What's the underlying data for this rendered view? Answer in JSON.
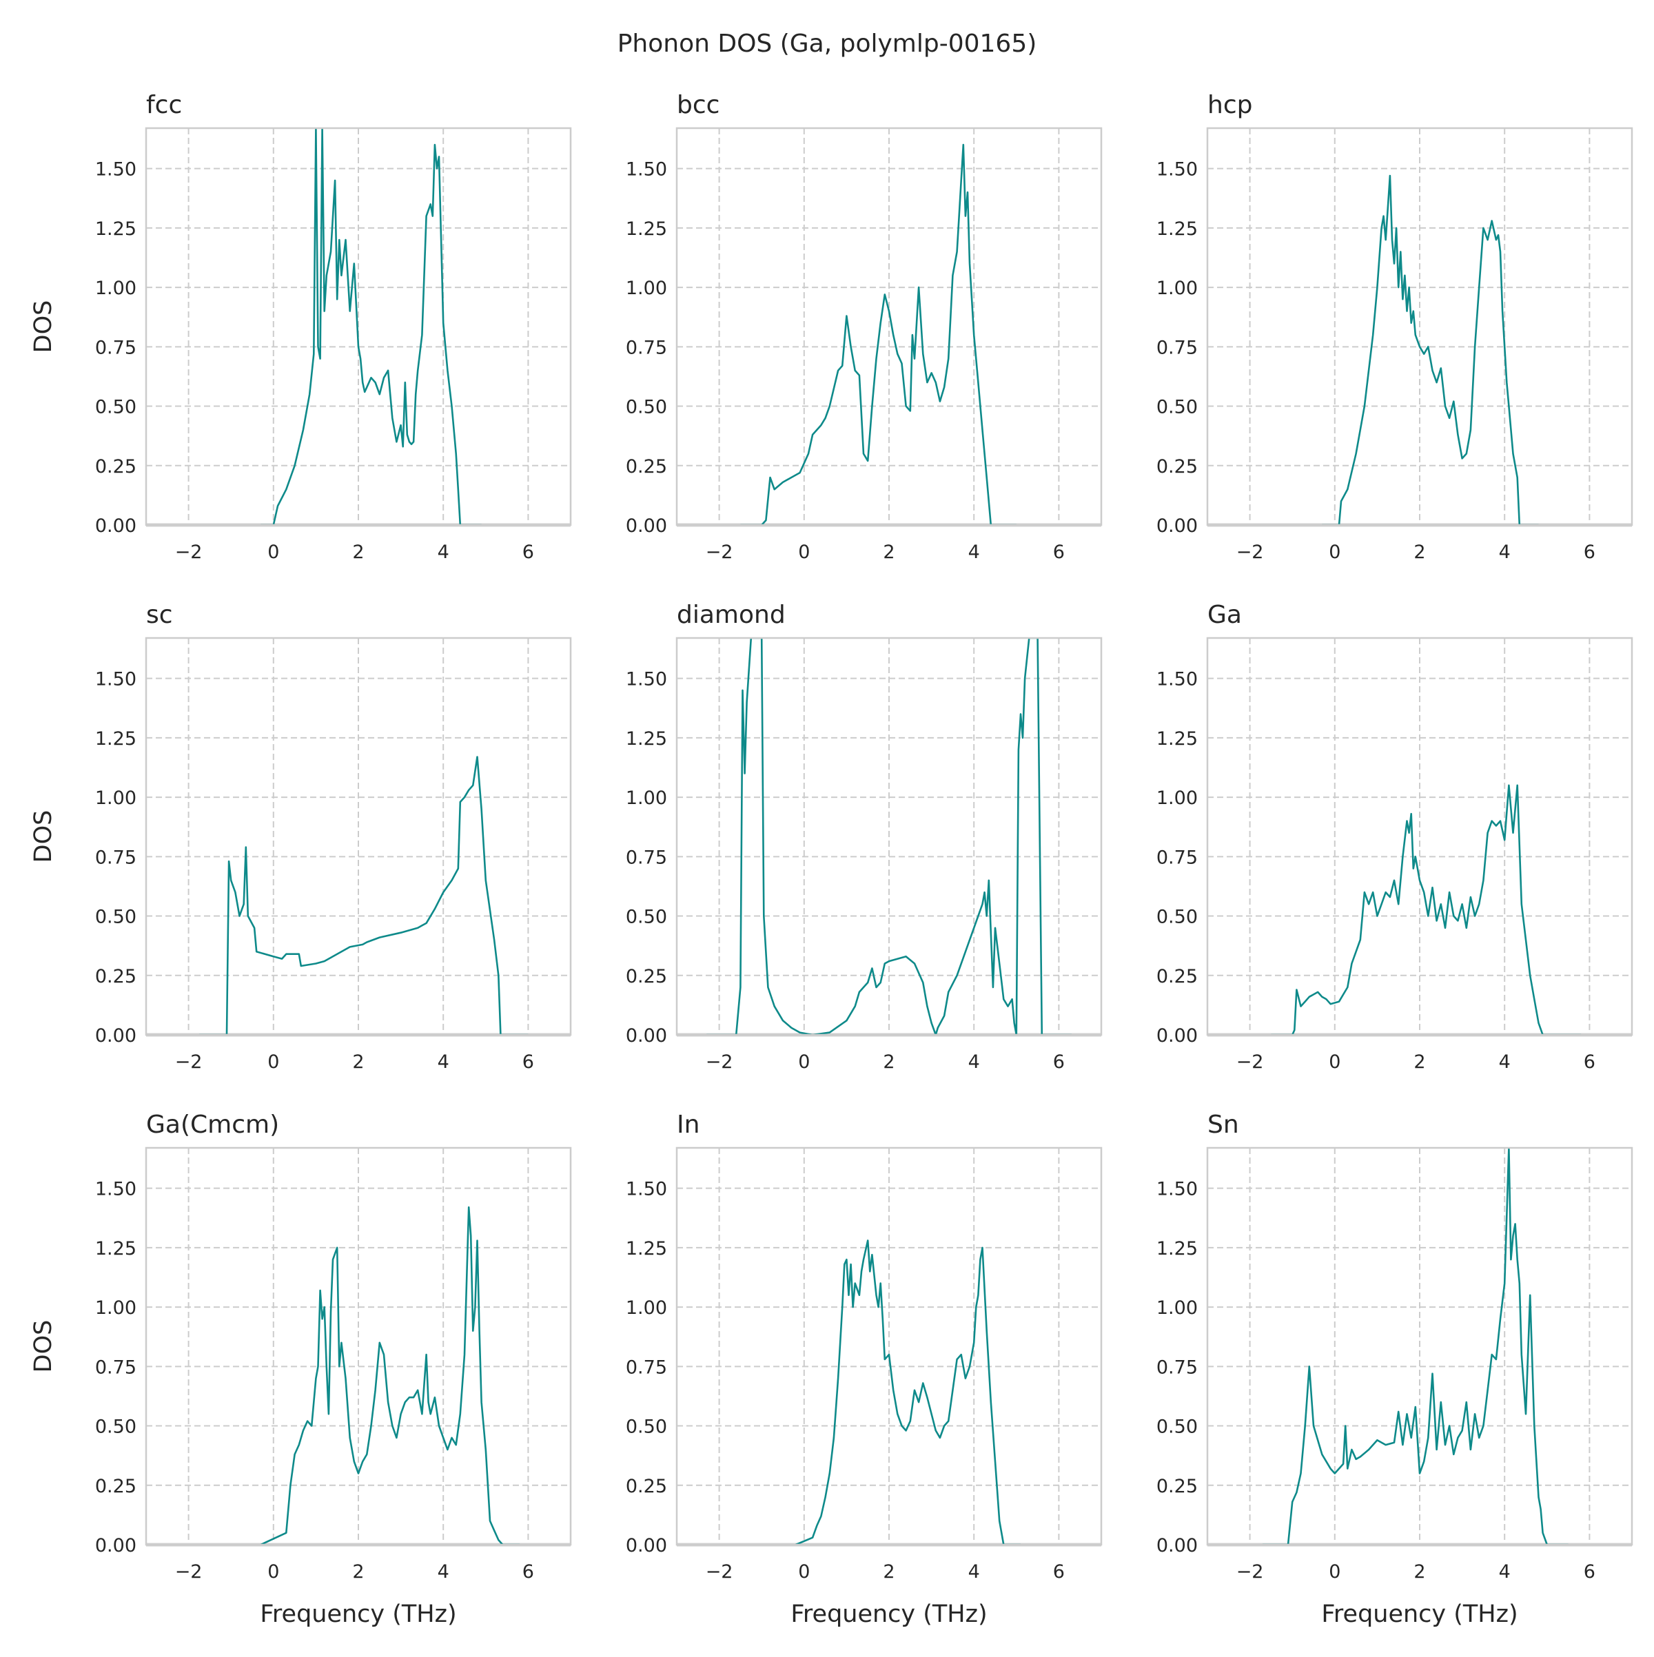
{
  "figure": {
    "title": "Phonon DOS (Ga, polymlp-00165)"
  },
  "colors": {
    "line": "#0e8a8a",
    "grid": "#cccccc",
    "frame": "#cccccc",
    "text": "#262626"
  },
  "chart_data": [
    {
      "type": "line",
      "title": "fcc",
      "xlabel": "",
      "ylabel": "DOS",
      "xlim": [
        -3,
        7
      ],
      "ylim": [
        0,
        1.67
      ],
      "xticks": [
        "−2",
        "0",
        "2",
        "4",
        "6"
      ],
      "yticks": [
        "0.00",
        "0.25",
        "0.50",
        "0.75",
        "1.00",
        "1.25",
        "1.50"
      ],
      "x": [
        -0.3,
        0.0,
        0.1,
        0.3,
        0.5,
        0.7,
        0.85,
        0.95,
        1.0,
        1.05,
        1.1,
        1.15,
        1.2,
        1.25,
        1.3,
        1.35,
        1.45,
        1.5,
        1.55,
        1.6,
        1.7,
        1.8,
        1.9,
        2.0,
        2.05,
        2.1,
        2.15,
        2.2,
        2.3,
        2.4,
        2.5,
        2.6,
        2.7,
        2.8,
        2.9,
        3.0,
        3.05,
        3.1,
        3.15,
        3.2,
        3.25,
        3.3,
        3.35,
        3.4,
        3.5,
        3.6,
        3.7,
        3.75,
        3.8,
        3.85,
        3.9,
        3.95,
        4.0,
        4.05,
        4.1,
        4.2,
        4.3,
        4.35,
        4.4,
        4.5,
        4.6,
        4.9
      ],
      "y": [
        0.0,
        0.0,
        0.08,
        0.15,
        0.25,
        0.4,
        0.55,
        0.72,
        1.67,
        0.75,
        0.7,
        1.67,
        0.9,
        1.05,
        1.1,
        1.15,
        1.45,
        0.95,
        1.2,
        1.05,
        1.2,
        0.9,
        1.1,
        0.75,
        0.7,
        0.6,
        0.56,
        0.58,
        0.62,
        0.6,
        0.55,
        0.62,
        0.65,
        0.45,
        0.35,
        0.42,
        0.33,
        0.6,
        0.38,
        0.35,
        0.34,
        0.35,
        0.55,
        0.65,
        0.8,
        1.3,
        1.35,
        1.3,
        1.6,
        1.5,
        1.55,
        1.2,
        0.85,
        0.75,
        0.65,
        0.5,
        0.3,
        0.15,
        0.0,
        0.0,
        0.0,
        0.0
      ]
    },
    {
      "type": "line",
      "title": "bcc",
      "xlabel": "",
      "ylabel": "",
      "xlim": [
        -3,
        7
      ],
      "ylim": [
        0,
        1.67
      ],
      "xticks": [
        "−2",
        "0",
        "2",
        "4",
        "6"
      ],
      "yticks": [
        "0.00",
        "0.25",
        "0.50",
        "0.75",
        "1.00",
        "1.25",
        "1.50"
      ],
      "x": [
        -1.5,
        -1.0,
        -0.9,
        -0.8,
        -0.7,
        -0.5,
        -0.3,
        -0.1,
        0.1,
        0.2,
        0.4,
        0.5,
        0.6,
        0.8,
        0.9,
        1.0,
        1.1,
        1.2,
        1.3,
        1.4,
        1.5,
        1.6,
        1.7,
        1.8,
        1.9,
        2.0,
        2.1,
        2.2,
        2.3,
        2.4,
        2.5,
        2.55,
        2.6,
        2.7,
        2.8,
        2.9,
        3.0,
        3.1,
        3.2,
        3.3,
        3.4,
        3.5,
        3.6,
        3.7,
        3.75,
        3.8,
        3.85,
        3.9,
        4.0,
        4.1,
        4.2,
        4.3,
        4.4,
        4.5,
        5.0
      ],
      "y": [
        0.0,
        0.0,
        0.02,
        0.2,
        0.15,
        0.18,
        0.2,
        0.22,
        0.3,
        0.38,
        0.42,
        0.45,
        0.5,
        0.65,
        0.67,
        0.88,
        0.75,
        0.65,
        0.63,
        0.3,
        0.27,
        0.5,
        0.7,
        0.85,
        0.97,
        0.9,
        0.8,
        0.72,
        0.68,
        0.5,
        0.48,
        0.8,
        0.7,
        1.0,
        0.72,
        0.6,
        0.64,
        0.6,
        0.52,
        0.58,
        0.7,
        1.05,
        1.15,
        1.45,
        1.6,
        1.3,
        1.4,
        1.1,
        0.8,
        0.6,
        0.4,
        0.2,
        0.0,
        0.0,
        0.0
      ]
    },
    {
      "type": "line",
      "title": "hcp",
      "xlabel": "",
      "ylabel": "",
      "xlim": [
        -3,
        7
      ],
      "ylim": [
        0,
        1.67
      ],
      "xticks": [
        "−2",
        "0",
        "2",
        "4",
        "6"
      ],
      "yticks": [
        "0.00",
        "0.25",
        "0.50",
        "0.75",
        "1.00",
        "1.25",
        "1.50"
      ],
      "x": [
        -0.3,
        0.1,
        0.15,
        0.3,
        0.5,
        0.7,
        0.9,
        1.0,
        1.1,
        1.15,
        1.2,
        1.3,
        1.35,
        1.4,
        1.45,
        1.5,
        1.55,
        1.6,
        1.65,
        1.7,
        1.75,
        1.8,
        1.85,
        1.9,
        2.0,
        2.1,
        2.2,
        2.3,
        2.4,
        2.5,
        2.6,
        2.7,
        2.8,
        2.9,
        3.0,
        3.1,
        3.2,
        3.3,
        3.4,
        3.5,
        3.6,
        3.7,
        3.8,
        3.85,
        3.9,
        3.95,
        4.0,
        4.05,
        4.1,
        4.2,
        4.3,
        4.35,
        4.8
      ],
      "y": [
        0.0,
        0.0,
        0.1,
        0.15,
        0.3,
        0.5,
        0.8,
        1.0,
        1.25,
        1.3,
        1.2,
        1.47,
        1.2,
        1.1,
        1.25,
        1.0,
        1.15,
        0.95,
        1.05,
        0.9,
        1.0,
        0.85,
        0.9,
        0.8,
        0.75,
        0.72,
        0.75,
        0.65,
        0.6,
        0.66,
        0.5,
        0.45,
        0.52,
        0.38,
        0.28,
        0.3,
        0.4,
        0.75,
        1.0,
        1.25,
        1.2,
        1.28,
        1.2,
        1.22,
        1.15,
        0.9,
        0.75,
        0.6,
        0.5,
        0.3,
        0.2,
        0.0,
        0.0
      ]
    },
    {
      "type": "line",
      "title": "sc",
      "xlabel": "",
      "ylabel": "DOS",
      "xlim": [
        -3,
        7
      ],
      "ylim": [
        0,
        1.67
      ],
      "xticks": [
        "−2",
        "0",
        "2",
        "4",
        "6"
      ],
      "yticks": [
        "0.00",
        "0.25",
        "0.50",
        "0.75",
        "1.00",
        "1.25",
        "1.50"
      ],
      "x": [
        -1.75,
        -1.1,
        -1.05,
        -1.0,
        -0.9,
        -0.8,
        -0.7,
        -0.65,
        -0.6,
        -0.45,
        -0.4,
        0.0,
        0.2,
        0.3,
        0.6,
        0.65,
        1.0,
        1.2,
        1.5,
        1.8,
        2.1,
        2.2,
        2.5,
        3.0,
        3.4,
        3.5,
        3.6,
        3.8,
        4.0,
        4.2,
        4.35,
        4.4,
        4.5,
        4.6,
        4.7,
        4.8,
        4.9,
        5.0,
        5.2,
        5.3,
        5.35,
        6.0
      ],
      "y": [
        0.0,
        0.0,
        0.73,
        0.65,
        0.6,
        0.5,
        0.55,
        0.79,
        0.5,
        0.45,
        0.35,
        0.33,
        0.32,
        0.34,
        0.34,
        0.29,
        0.3,
        0.31,
        0.34,
        0.37,
        0.38,
        0.39,
        0.41,
        0.43,
        0.45,
        0.46,
        0.47,
        0.53,
        0.6,
        0.65,
        0.7,
        0.98,
        1.0,
        1.03,
        1.05,
        1.17,
        0.95,
        0.65,
        0.4,
        0.25,
        0.0,
        0.0
      ]
    },
    {
      "type": "line",
      "title": "diamond",
      "xlabel": "",
      "ylabel": "",
      "xlim": [
        -3,
        7
      ],
      "ylim": [
        0,
        1.67
      ],
      "xticks": [
        "−2",
        "0",
        "2",
        "4",
        "6"
      ],
      "yticks": [
        "0.00",
        "0.25",
        "0.50",
        "0.75",
        "1.00",
        "1.25",
        "1.50"
      ],
      "x": [
        -2.3,
        -1.6,
        -1.5,
        -1.45,
        -1.4,
        -1.35,
        -1.25,
        -1.2,
        -1.15,
        -1.0,
        -0.95,
        -0.85,
        -0.7,
        -0.5,
        -0.3,
        -0.1,
        0.2,
        0.6,
        1.0,
        1.2,
        1.3,
        1.4,
        1.5,
        1.6,
        1.7,
        1.8,
        1.9,
        2.0,
        2.4,
        2.6,
        2.8,
        2.9,
        3.0,
        3.1,
        3.15,
        3.3,
        3.4,
        3.6,
        3.8,
        4.0,
        4.2,
        4.25,
        4.3,
        4.35,
        4.45,
        4.5,
        4.6,
        4.7,
        4.8,
        4.9,
        4.95,
        5.0,
        5.05,
        5.1,
        5.15,
        5.2,
        5.3,
        5.4,
        5.5,
        5.6,
        6.3
      ],
      "y": [
        0.0,
        0.0,
        0.2,
        1.45,
        1.1,
        1.4,
        1.67,
        1.67,
        1.67,
        1.67,
        0.5,
        0.2,
        0.12,
        0.06,
        0.03,
        0.01,
        0.0,
        0.01,
        0.06,
        0.12,
        0.18,
        0.2,
        0.22,
        0.28,
        0.2,
        0.22,
        0.3,
        0.31,
        0.33,
        0.3,
        0.22,
        0.12,
        0.05,
        0.0,
        0.03,
        0.08,
        0.18,
        0.25,
        0.35,
        0.45,
        0.55,
        0.6,
        0.5,
        0.65,
        0.2,
        0.45,
        0.3,
        0.15,
        0.12,
        0.15,
        0.05,
        0.0,
        1.2,
        1.35,
        1.25,
        1.5,
        1.67,
        1.67,
        1.67,
        0.0,
        0.0
      ]
    },
    {
      "type": "line",
      "title": "Ga",
      "xlabel": "",
      "ylabel": "",
      "xlim": [
        -3,
        7
      ],
      "ylim": [
        0,
        1.67
      ],
      "xticks": [
        "−2",
        "0",
        "2",
        "4",
        "6"
      ],
      "yticks": [
        "0.00",
        "0.25",
        "0.50",
        "0.75",
        "1.00",
        "1.25",
        "1.50"
      ],
      "x": [
        -1.5,
        -1.0,
        -0.95,
        -0.9,
        -0.8,
        -0.7,
        -0.6,
        -0.5,
        -0.4,
        -0.3,
        -0.2,
        -0.1,
        0.1,
        0.3,
        0.4,
        0.5,
        0.6,
        0.7,
        0.8,
        0.9,
        1.0,
        1.1,
        1.2,
        1.3,
        1.4,
        1.5,
        1.6,
        1.7,
        1.75,
        1.8,
        1.85,
        1.9,
        2.0,
        2.1,
        2.2,
        2.3,
        2.4,
        2.5,
        2.6,
        2.7,
        2.8,
        2.9,
        3.0,
        3.1,
        3.2,
        3.3,
        3.4,
        3.5,
        3.6,
        3.7,
        3.8,
        3.9,
        4.0,
        4.1,
        4.2,
        4.3,
        4.4,
        4.5,
        4.6,
        4.7,
        4.8,
        4.9,
        5.0,
        5.2,
        5.8
      ],
      "y": [
        0.0,
        0.0,
        0.02,
        0.19,
        0.12,
        0.14,
        0.16,
        0.17,
        0.18,
        0.16,
        0.15,
        0.13,
        0.14,
        0.2,
        0.3,
        0.35,
        0.4,
        0.6,
        0.55,
        0.6,
        0.5,
        0.55,
        0.6,
        0.58,
        0.65,
        0.55,
        0.75,
        0.9,
        0.85,
        0.93,
        0.7,
        0.75,
        0.65,
        0.6,
        0.5,
        0.62,
        0.48,
        0.55,
        0.45,
        0.6,
        0.5,
        0.48,
        0.55,
        0.45,
        0.58,
        0.5,
        0.55,
        0.65,
        0.85,
        0.9,
        0.88,
        0.9,
        0.82,
        1.05,
        0.85,
        1.05,
        0.55,
        0.4,
        0.25,
        0.15,
        0.05,
        0.0,
        0.0,
        0.0,
        0.0
      ]
    },
    {
      "type": "line",
      "title": "Ga(Cmcm)",
      "xlabel": "Frequency (THz)",
      "ylabel": "DOS",
      "xlim": [
        -3,
        7
      ],
      "ylim": [
        0,
        1.67
      ],
      "xticks": [
        "−2",
        "0",
        "2",
        "4",
        "6"
      ],
      "yticks": [
        "0.00",
        "0.25",
        "0.50",
        "0.75",
        "1.00",
        "1.25",
        "1.50"
      ],
      "x": [
        -0.3,
        0.3,
        0.4,
        0.5,
        0.6,
        0.7,
        0.8,
        0.9,
        1.0,
        1.05,
        1.1,
        1.15,
        1.2,
        1.25,
        1.3,
        1.35,
        1.4,
        1.5,
        1.55,
        1.6,
        1.7,
        1.8,
        1.9,
        2.0,
        2.1,
        2.2,
        2.3,
        2.4,
        2.5,
        2.6,
        2.7,
        2.8,
        2.9,
        3.0,
        3.1,
        3.2,
        3.3,
        3.4,
        3.5,
        3.6,
        3.65,
        3.7,
        3.8,
        3.9,
        4.0,
        4.1,
        4.2,
        4.3,
        4.4,
        4.5,
        4.6,
        4.65,
        4.7,
        4.75,
        4.8,
        4.85,
        4.9,
        5.0,
        5.1,
        5.2,
        5.3,
        5.4,
        5.5,
        5.8
      ],
      "y": [
        0.0,
        0.05,
        0.25,
        0.38,
        0.42,
        0.48,
        0.52,
        0.5,
        0.7,
        0.75,
        1.07,
        0.95,
        1.0,
        0.75,
        0.55,
        0.98,
        1.2,
        1.25,
        0.75,
        0.85,
        0.7,
        0.45,
        0.35,
        0.3,
        0.35,
        0.38,
        0.5,
        0.65,
        0.85,
        0.8,
        0.6,
        0.5,
        0.45,
        0.55,
        0.6,
        0.62,
        0.62,
        0.65,
        0.55,
        0.8,
        0.6,
        0.55,
        0.62,
        0.5,
        0.45,
        0.4,
        0.45,
        0.42,
        0.55,
        0.8,
        1.42,
        1.3,
        0.9,
        1.0,
        1.28,
        0.9,
        0.6,
        0.4,
        0.1,
        0.06,
        0.02,
        0.0,
        0.0,
        0.0
      ]
    },
    {
      "type": "line",
      "title": "In",
      "xlabel": "Frequency (THz)",
      "ylabel": "",
      "xlim": [
        -3,
        7
      ],
      "ylim": [
        0,
        1.67
      ],
      "xticks": [
        "−2",
        "0",
        "2",
        "4",
        "6"
      ],
      "yticks": [
        "0.00",
        "0.25",
        "0.50",
        "0.75",
        "1.00",
        "1.25",
        "1.50"
      ],
      "x": [
        -0.2,
        0.2,
        0.3,
        0.4,
        0.5,
        0.6,
        0.7,
        0.8,
        0.9,
        0.95,
        1.0,
        1.05,
        1.1,
        1.15,
        1.2,
        1.3,
        1.35,
        1.4,
        1.5,
        1.55,
        1.6,
        1.7,
        1.75,
        1.8,
        1.85,
        1.9,
        2.0,
        2.1,
        2.2,
        2.3,
        2.4,
        2.5,
        2.6,
        2.7,
        2.8,
        2.9,
        3.0,
        3.1,
        3.2,
        3.3,
        3.4,
        3.5,
        3.6,
        3.7,
        3.8,
        3.9,
        4.0,
        4.05,
        4.1,
        4.15,
        4.2,
        4.3,
        4.4,
        4.5,
        4.6,
        4.7,
        5.1
      ],
      "y": [
        0.0,
        0.03,
        0.08,
        0.12,
        0.2,
        0.3,
        0.45,
        0.7,
        1.0,
        1.18,
        1.2,
        1.05,
        1.18,
        1.0,
        1.1,
        1.05,
        1.15,
        1.2,
        1.28,
        1.15,
        1.22,
        1.05,
        1.0,
        1.1,
        0.95,
        0.78,
        0.8,
        0.65,
        0.55,
        0.5,
        0.48,
        0.52,
        0.65,
        0.6,
        0.68,
        0.62,
        0.55,
        0.48,
        0.45,
        0.5,
        0.52,
        0.65,
        0.78,
        0.8,
        0.7,
        0.75,
        0.85,
        1.0,
        1.05,
        1.2,
        1.25,
        0.9,
        0.6,
        0.35,
        0.1,
        0.0,
        0.0
      ]
    },
    {
      "type": "line",
      "title": "Sn",
      "xlabel": "Frequency (THz)",
      "ylabel": "",
      "xlim": [
        -3,
        7
      ],
      "ylim": [
        0,
        1.67
      ],
      "xticks": [
        "−2",
        "0",
        "2",
        "4",
        "6"
      ],
      "yticks": [
        "0.00",
        "0.25",
        "0.50",
        "0.75",
        "1.00",
        "1.25",
        "1.50"
      ],
      "x": [
        -1.7,
        -1.1,
        -1.0,
        -0.9,
        -0.8,
        -0.7,
        -0.6,
        -0.5,
        -0.3,
        -0.1,
        0.0,
        0.2,
        0.25,
        0.3,
        0.4,
        0.5,
        0.6,
        0.8,
        1.0,
        1.2,
        1.4,
        1.5,
        1.6,
        1.7,
        1.8,
        1.9,
        2.0,
        2.1,
        2.2,
        2.3,
        2.4,
        2.5,
        2.6,
        2.7,
        2.8,
        2.9,
        3.0,
        3.1,
        3.2,
        3.3,
        3.4,
        3.5,
        3.6,
        3.7,
        3.8,
        3.9,
        4.0,
        4.1,
        4.15,
        4.2,
        4.25,
        4.3,
        4.35,
        4.4,
        4.5,
        4.6,
        4.7,
        4.8,
        4.85,
        4.9,
        5.0,
        5.5
      ],
      "y": [
        0.0,
        0.0,
        0.18,
        0.22,
        0.3,
        0.5,
        0.75,
        0.5,
        0.38,
        0.32,
        0.3,
        0.34,
        0.5,
        0.32,
        0.4,
        0.36,
        0.37,
        0.4,
        0.44,
        0.42,
        0.43,
        0.56,
        0.42,
        0.55,
        0.45,
        0.58,
        0.3,
        0.35,
        0.45,
        0.72,
        0.4,
        0.6,
        0.42,
        0.5,
        0.38,
        0.45,
        0.48,
        0.6,
        0.4,
        0.55,
        0.45,
        0.5,
        0.65,
        0.8,
        0.78,
        0.95,
        1.1,
        1.67,
        1.2,
        1.3,
        1.35,
        1.2,
        1.1,
        0.8,
        0.55,
        1.05,
        0.5,
        0.2,
        0.15,
        0.05,
        0.0,
        0.0
      ]
    }
  ]
}
